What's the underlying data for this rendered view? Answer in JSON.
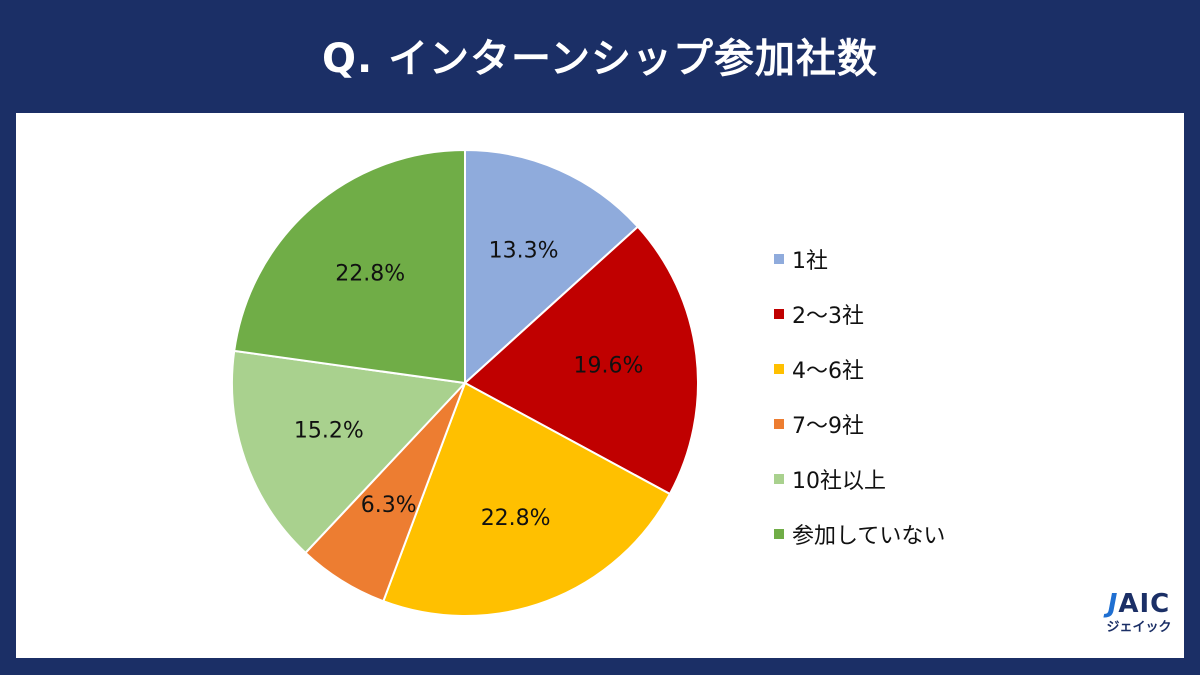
{
  "header": {
    "title": "Q. インターンシップ参加社数"
  },
  "chart_data": {
    "type": "pie",
    "title": "Q. インターンシップ参加社数",
    "legend_position": "right",
    "slices": [
      {
        "label": "1社",
        "value": 13.3,
        "display": "13.3%",
        "color": "#8fabdc"
      },
      {
        "label": "2～3社",
        "value": 19.6,
        "display": "19.6%",
        "color": "#c00000"
      },
      {
        "label": "4～6社",
        "value": 22.8,
        "display": "22.8%",
        "color": "#ffc000"
      },
      {
        "label": "7～9社",
        "value": 6.3,
        "display": "6.3%",
        "color": "#ed7d31"
      },
      {
        "label": "10社以上",
        "value": 15.2,
        "display": "15.2%",
        "color": "#a9d18e"
      },
      {
        "label": "参加していない",
        "value": 22.8,
        "display": "22.8%",
        "color": "#70ad47"
      }
    ]
  },
  "logo": {
    "mark_j": "J",
    "mark_rest": "AIC",
    "sub": "ジェイック",
    "icon": "jaic-logo"
  }
}
